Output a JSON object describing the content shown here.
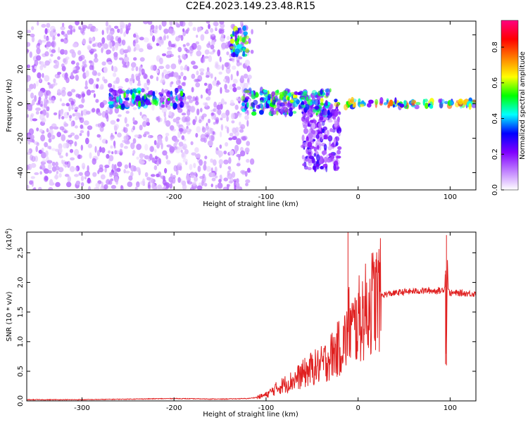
{
  "title": "C2E4.2023.149.23.48.R15",
  "chart_data": [
    {
      "type": "heatmap",
      "xlabel": "Height of straight line (km)",
      "ylabel": "Frequency (Hz)",
      "xlim": [
        -360,
        128
      ],
      "ylim": [
        -50,
        48
      ],
      "xticks": [
        "-300",
        "-200",
        "-100",
        "0",
        "100"
      ],
      "yticks": [
        "-40",
        "-20",
        "0",
        "20",
        "40"
      ],
      "colorbar": {
        "label": "Normalized spectral amplitude",
        "range": [
          0.0,
          0.95
        ],
        "ticks": [
          "0.0",
          "0.2",
          "0.4",
          "0.6",
          "0.8"
        ],
        "colormap": [
          "#ffffff",
          "#c080ff",
          "#8000ff",
          "#0000ff",
          "#00ffff",
          "#00ff00",
          "#ffff00",
          "#ff8000",
          "#ff0000",
          "#ff0080"
        ]
      },
      "features": [
        {
          "name": "broadband noise",
          "x_range": [
            -360,
            -115
          ],
          "freq_range": [
            -50,
            48
          ],
          "amplitude": 0.1
        },
        {
          "name": "low-frequency band",
          "x_range": [
            -270,
            -190
          ],
          "freq_range": [
            -2,
            8
          ],
          "amplitude": 0.4
        },
        {
          "name": "frequency streak",
          "x_range": [
            -138,
            -120
          ],
          "freq_range": [
            28,
            44
          ],
          "amplitude": 0.45
        },
        {
          "name": "descending branch",
          "x_range": [
            -60,
            -20
          ],
          "freq_range": [
            -38,
            0
          ],
          "amplitude": 0.2
        },
        {
          "name": "low-frequency band",
          "x_range": [
            -125,
            -30
          ],
          "freq_range": [
            -6,
            8
          ],
          "amplitude": 0.45
        },
        {
          "name": "stable 0 Hz line",
          "x_range": [
            -25,
            128
          ],
          "freq_range": [
            -2,
            2
          ],
          "amplitude": 0.6
        }
      ]
    },
    {
      "type": "line",
      "xlabel": "Height of straight line (km)",
      "ylabel": "SNR (10 * v/v)",
      "ylabel_multiplier": "(x10^4)",
      "xlim": [
        -360,
        128
      ],
      "ylim": [
        0,
        2.85
      ],
      "xticks": [
        "-300",
        "-200",
        "-100",
        "0",
        "100"
      ],
      "yticks": [
        "0.0",
        "0.5",
        "1.0",
        "1.5",
        "2.0",
        "2.5"
      ],
      "color": "#e02020",
      "series": [
        {
          "x": [
            -360,
            -300,
            -250,
            -200,
            -150,
            -120,
            -110,
            -100,
            -90,
            -80,
            -70,
            -60,
            -50,
            -40,
            -30,
            -20,
            -15,
            -12,
            -10,
            -5,
            0,
            5,
            10,
            15,
            20,
            25,
            30,
            40,
            50,
            60,
            70,
            80,
            90,
            94,
            95,
            96,
            97,
            98,
            100,
            110,
            128
          ],
          "y": [
            0.02,
            0.02,
            0.03,
            0.04,
            0.03,
            0.04,
            0.06,
            0.1,
            0.2,
            0.28,
            0.35,
            0.45,
            0.55,
            0.6,
            0.75,
            0.9,
            1.0,
            1.1,
            1.3,
            1.2,
            1.35,
            1.45,
            1.55,
            1.68,
            1.75,
            1.78,
            1.8,
            1.82,
            1.84,
            1.85,
            1.86,
            1.86,
            1.86,
            1.9,
            2.2,
            0.6,
            2.5,
            1.85,
            1.82,
            1.82,
            1.81
          ]
        }
      ],
      "spikes": [
        {
          "x": -11,
          "y": 2.85
        },
        {
          "x": 96,
          "y": 2.8
        },
        {
          "x": 95,
          "y": 0.62
        }
      ]
    }
  ]
}
